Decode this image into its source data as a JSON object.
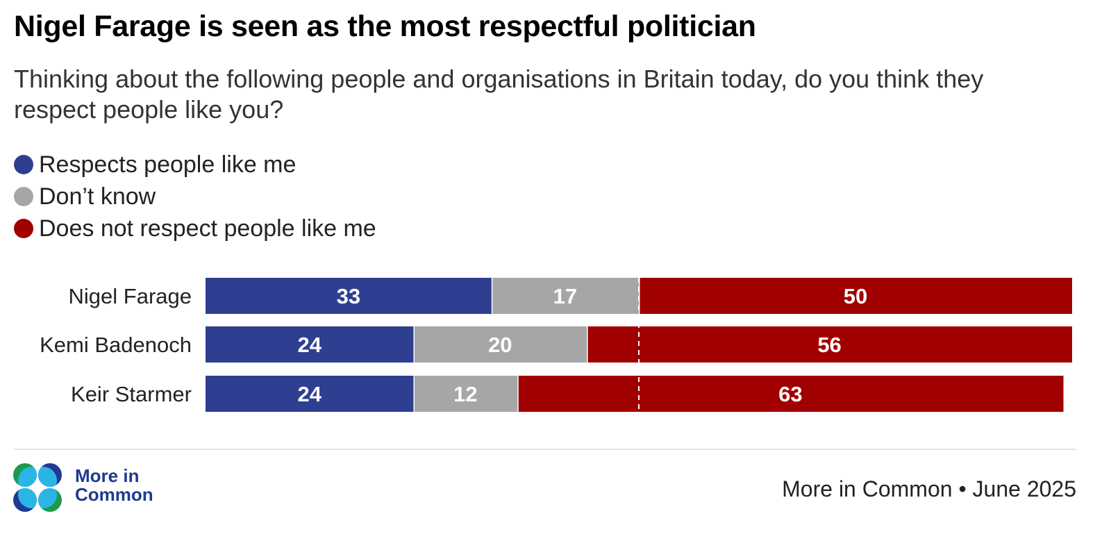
{
  "title": "Nigel Farage is seen as the most respectful politician",
  "subtitle": "Thinking about the following people and organisations in Britain today, do you think they respect people like you?",
  "legend": [
    {
      "label": "Respects people like me",
      "color": "#2e3f91"
    },
    {
      "label": "Don’t know",
      "color": "#a6a6a6"
    },
    {
      "label": "Does not respect people like me",
      "color": "#a10000"
    }
  ],
  "footer": {
    "logo_text_line1": "More in",
    "logo_text_line2": "Common",
    "source": "More in Common • June 2025"
  },
  "chart_data": {
    "type": "bar",
    "orientation": "horizontal",
    "stacked": true,
    "title": "Nigel Farage is seen as the most respectful politician",
    "xlabel": "",
    "ylabel": "",
    "xlim": [
      0,
      100
    ],
    "reference_line": 50,
    "categories": [
      "Nigel Farage",
      "Kemi Badenoch",
      "Keir Starmer"
    ],
    "series": [
      {
        "name": "Respects people like me",
        "color": "#2e3f91",
        "values": [
          33,
          24,
          24
        ]
      },
      {
        "name": "Don’t know",
        "color": "#a6a6a6",
        "values": [
          17,
          20,
          12
        ]
      },
      {
        "name": "Does not respect people like me",
        "color": "#a10000",
        "values": [
          50,
          56,
          63
        ]
      }
    ]
  }
}
